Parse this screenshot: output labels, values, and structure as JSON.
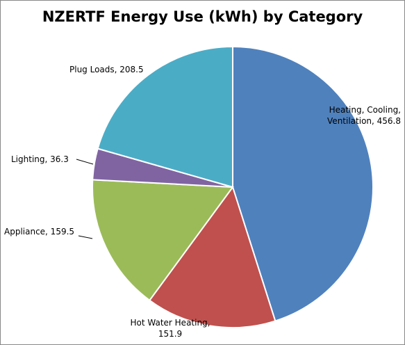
{
  "chart_data": {
    "type": "pie",
    "title": "NZERTF Energy Use (kWh) by Category",
    "values": [
      456.8,
      151.9,
      159.5,
      36.3,
      208.5
    ],
    "value_labels": [
      "Heating, Cooling, Ventilation, 456.8",
      "Hot Water Heating, 151.9",
      "Appliance, 159.5",
      "Lighting, 36.3",
      "Plug Loads, 208.5"
    ],
    "colors": [
      "#4f81bd",
      "#c0504d",
      "#9bbb59",
      "#8064a2",
      "#4bacc6"
    ]
  }
}
